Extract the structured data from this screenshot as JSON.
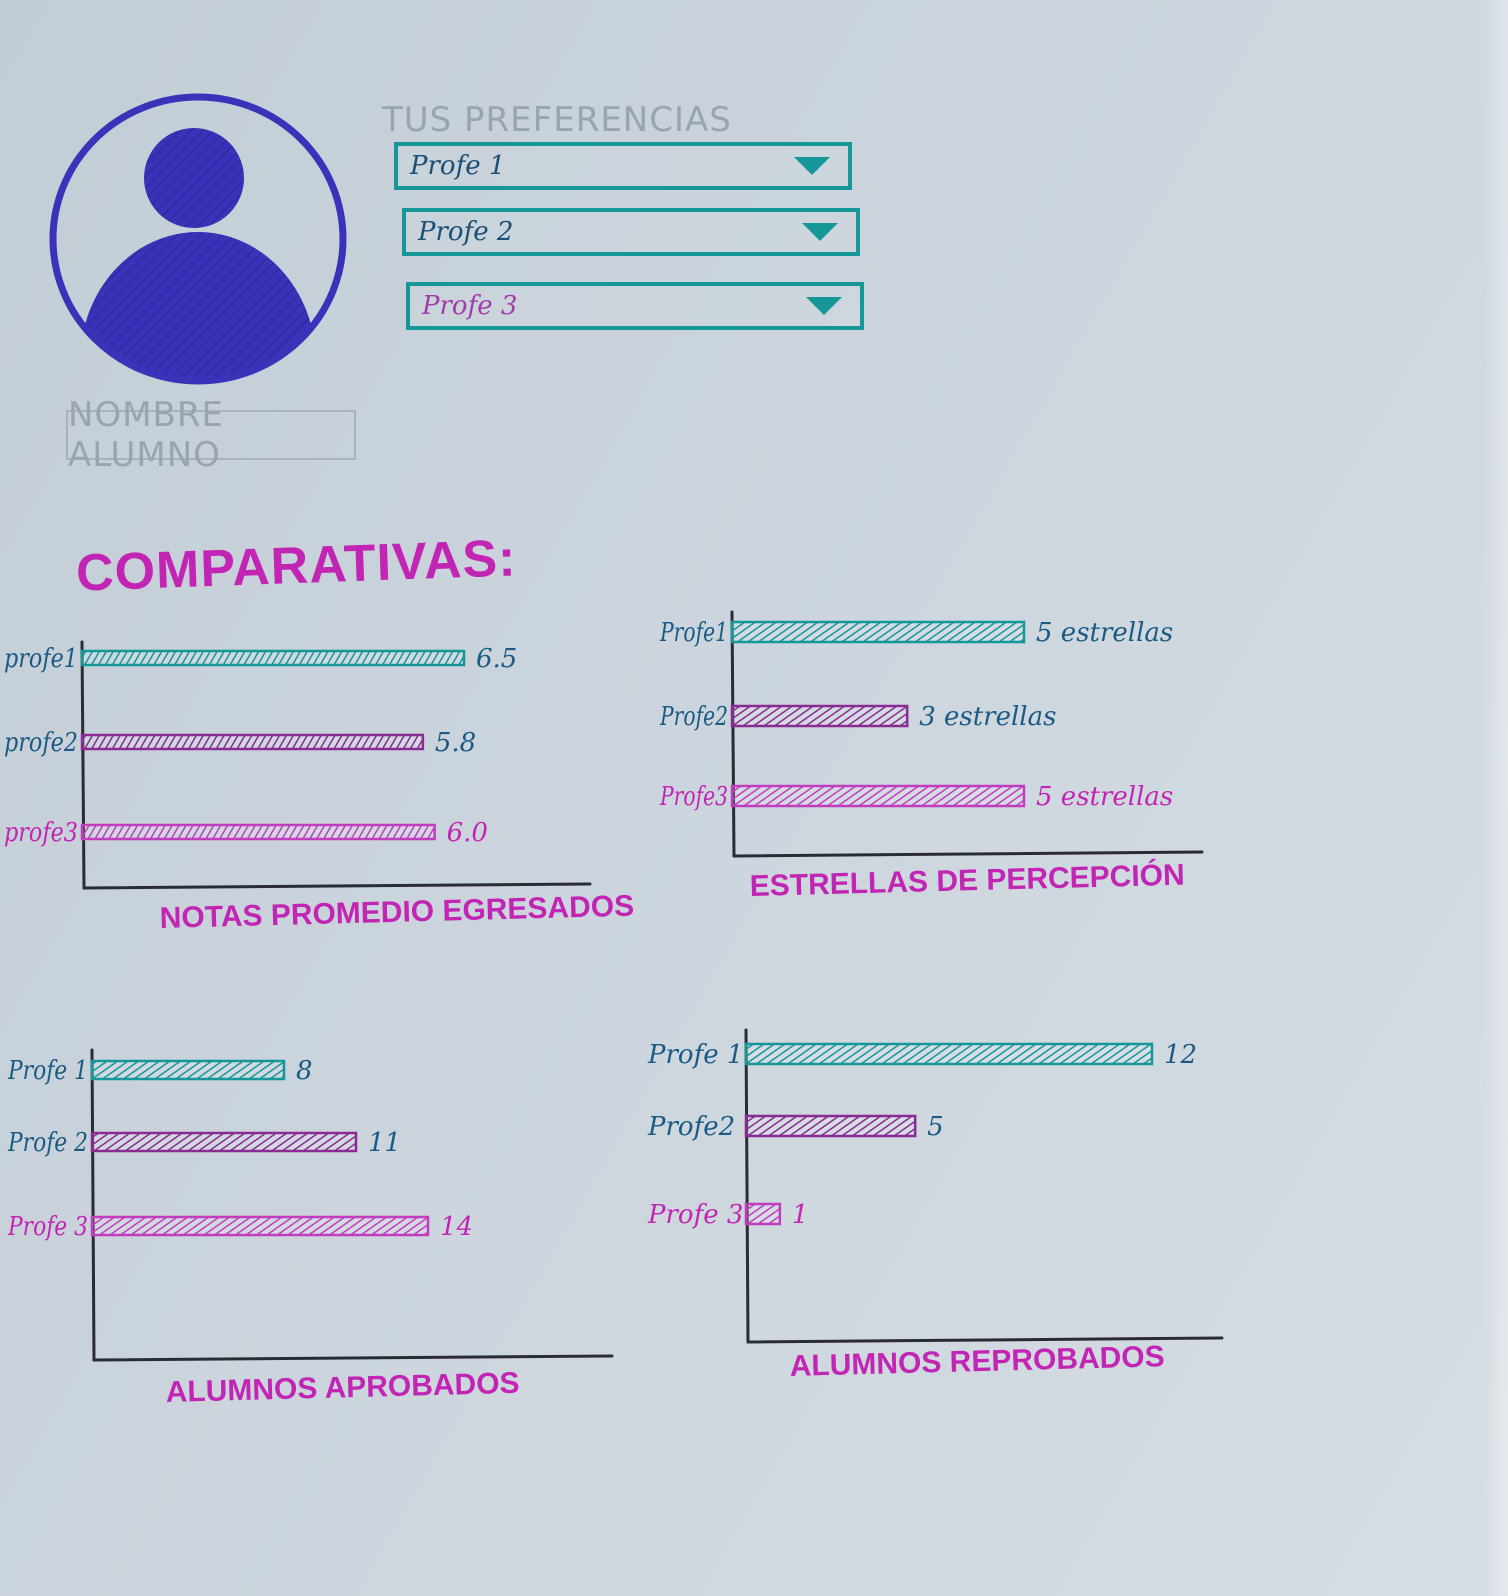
{
  "profile": {
    "student_name": "NOMBRE ALUMNO",
    "avatar_icon": "user-avatar-icon",
    "avatar_color": "#3a32b8"
  },
  "preferences": {
    "title": "TUS PREFERENCIAS",
    "dropdowns": [
      {
        "value": "Profe 1"
      },
      {
        "value": "Profe 2"
      },
      {
        "value": "Profe 3"
      }
    ],
    "arrow_icon": "triangle-down-icon",
    "border_color": "#15979a"
  },
  "section": {
    "heading": "COMPARATIVAS:"
  },
  "colors": {
    "profe1": "#15979a",
    "profe2": "#8a2a93",
    "profe3": "#c23cc0",
    "axis": "#2b2b36",
    "label_blue": "#1a5a84",
    "label_pink": "#c225b4"
  },
  "chart_data": [
    {
      "type": "bar",
      "orientation": "horizontal",
      "title": "NOTAS PROMEDIO EGRESADOS",
      "categories": [
        "profe1",
        "profe2",
        "profe3"
      ],
      "values": [
        6.5,
        5.8,
        6.0
      ],
      "value_labels": [
        "6.5",
        "5.8",
        "6.0"
      ]
    },
    {
      "type": "bar",
      "orientation": "horizontal",
      "title": "ESTRELLAS DE PERCEPCIÓN",
      "categories": [
        "Profe1",
        "Profe2",
        "Profe3"
      ],
      "values": [
        5,
        3,
        5
      ],
      "value_labels": [
        "5 estrellas",
        "3 estrellas",
        "5 estrellas"
      ]
    },
    {
      "type": "bar",
      "orientation": "horizontal",
      "title": "ALUMNOS APROBADOS",
      "categories": [
        "Profe 1",
        "Profe 2",
        "Profe 3"
      ],
      "values": [
        8,
        11,
        14
      ],
      "value_labels": [
        "8",
        "11",
        "14"
      ]
    },
    {
      "type": "bar",
      "orientation": "horizontal",
      "title": "ALUMNOS REPROBADOS",
      "categories": [
        "Profe 1",
        "Profe2",
        "Profe 3"
      ],
      "values": [
        12,
        5,
        1
      ],
      "value_labels": [
        "12",
        "5",
        "1"
      ]
    }
  ]
}
